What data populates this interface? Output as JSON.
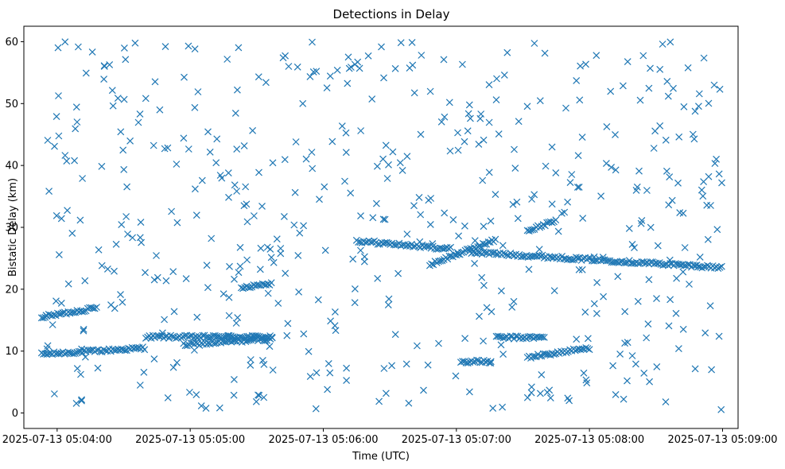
{
  "chart_data": {
    "type": "scatter",
    "title": "Detections in Delay",
    "xlabel": "Time (UTC)",
    "ylabel": "Bistatic Delay (km)",
    "xlim": [
      "2025-07-13 05:03:45",
      "2025-07-13 05:09:07"
    ],
    "ylim": [
      -2.5,
      62.5
    ],
    "xticks": [
      "2025-07-13 05:04:00",
      "2025-07-13 05:05:00",
      "2025-07-13 05:06:00",
      "2025-07-13 05:07:00",
      "2025-07-13 05:08:00",
      "2025-07-13 05:09:00"
    ],
    "yticks": [
      0,
      10,
      20,
      30,
      40,
      50,
      60
    ],
    "grid": false,
    "marker": "x",
    "color": "#1f77b4",
    "tracks": [
      {
        "start": "2025-07-13 05:03:53",
        "end": "2025-07-13 05:04:40",
        "y_start": 9.5,
        "y_end": 10.5
      },
      {
        "start": "2025-07-13 05:04:40",
        "end": "2025-07-13 05:05:37",
        "y_start": 12.3,
        "y_end": 12.3
      },
      {
        "start": "2025-07-13 05:04:57",
        "end": "2025-07-13 05:05:37",
        "y_start": 11.0,
        "y_end": 12.0
      },
      {
        "start": "2025-07-13 05:03:53",
        "end": "2025-07-13 05:04:18",
        "y_start": 15.5,
        "y_end": 17.0
      },
      {
        "start": "2025-07-13 05:05:23",
        "end": "2025-07-13 05:05:37",
        "y_start": 20.3,
        "y_end": 21.0
      },
      {
        "start": "2025-07-13 05:06:15",
        "end": "2025-07-13 05:06:58",
        "y_start": 27.8,
        "y_end": 26.5
      },
      {
        "start": "2025-07-13 05:06:48",
        "end": "2025-07-13 05:07:18",
        "y_start": 24.0,
        "y_end": 28.0
      },
      {
        "start": "2025-07-13 05:07:06",
        "end": "2025-07-13 05:09:00",
        "y_start": 26.0,
        "y_end": 23.5
      },
      {
        "start": "2025-07-13 05:07:02",
        "end": "2025-07-13 05:07:16",
        "y_start": 8.3,
        "y_end": 8.3
      },
      {
        "start": "2025-07-13 05:07:18",
        "end": "2025-07-13 05:07:40",
        "y_start": 12.2,
        "y_end": 12.2
      },
      {
        "start": "2025-07-13 05:07:32",
        "end": "2025-07-13 05:08:00",
        "y_start": 9.0,
        "y_end": 10.5
      },
      {
        "start": "2025-07-13 05:07:32",
        "end": "2025-07-13 05:07:45",
        "y_start": 29.5,
        "y_end": 31.0
      }
    ],
    "clutter": {
      "count": 520,
      "x_range": [
        "2025-07-13 05:03:53",
        "2025-07-13 05:09:00"
      ],
      "y_range": [
        0.5,
        60
      ]
    }
  }
}
